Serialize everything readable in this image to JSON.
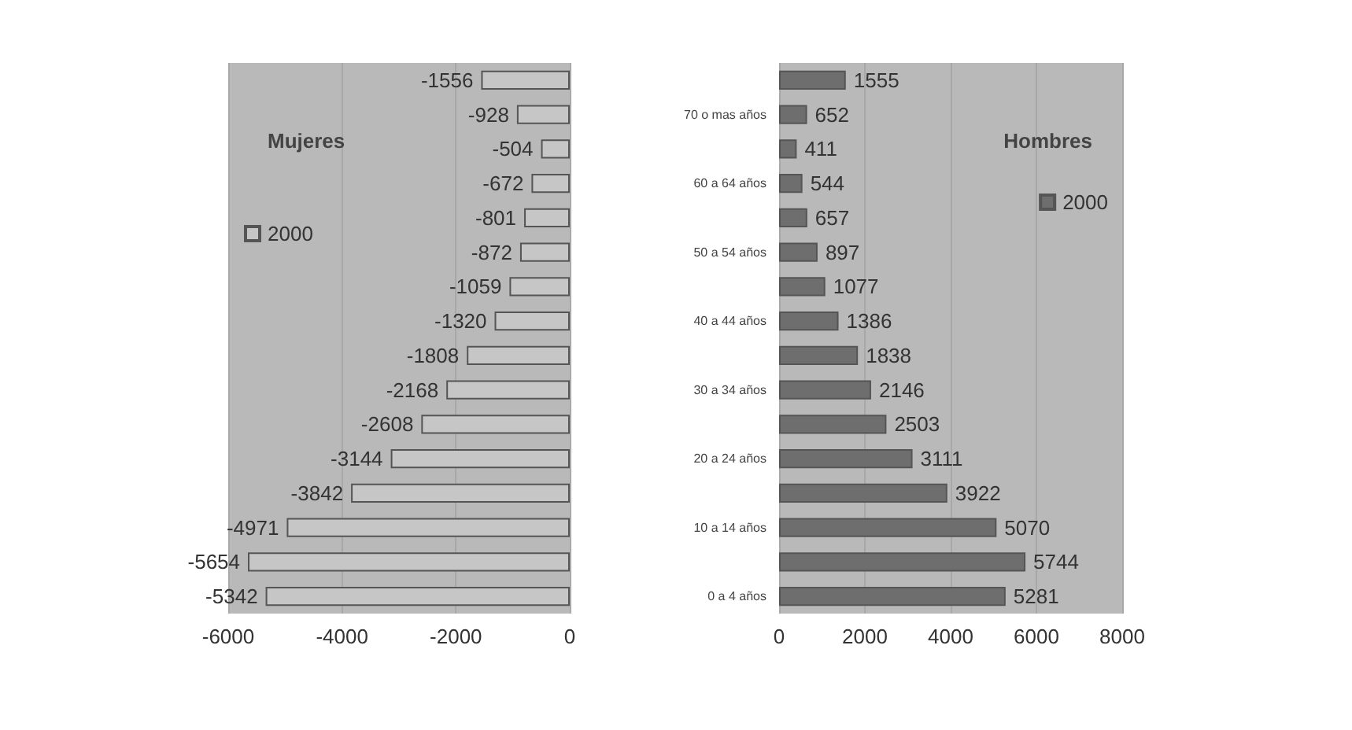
{
  "chart_data": [
    {
      "type": "bar",
      "orientation": "horizontal",
      "title": "Mujeres",
      "categories": [
        null,
        null,
        null,
        null,
        null,
        null,
        null,
        null,
        null,
        null,
        null,
        null,
        null,
        null,
        null,
        null
      ],
      "series": [
        {
          "name": "2000",
          "color": "#c6c6c6",
          "values": [
            -1556,
            -928,
            -504,
            -672,
            -801,
            -872,
            -1059,
            -1320,
            -1808,
            -2168,
            -2608,
            -3144,
            -3842,
            -4971,
            -5654,
            -5342
          ]
        }
      ],
      "xlim": [
        -6000,
        0
      ],
      "xticks": [
        -6000,
        -4000,
        -2000,
        0
      ],
      "grid": "x",
      "legend": "top left",
      "data_labels": true,
      "tick_labels": "x"
    },
    {
      "type": "bar",
      "orientation": "horizontal",
      "title": "Hombres",
      "categories": [
        null,
        "70 o mas años",
        null,
        "60 a 64 años",
        null,
        "50 a 54 años",
        null,
        "40 a 44 años",
        null,
        "30 a 34 años",
        null,
        "20 a 24 años",
        null,
        "10 a 14 años",
        null,
        "0 a 4 años"
      ],
      "series": [
        {
          "name": "2000",
          "color": "#6e6e6e",
          "values": [
            1555,
            652,
            411,
            544,
            657,
            897,
            1077,
            1386,
            1838,
            2146,
            2503,
            3111,
            3922,
            5070,
            5744,
            5281
          ]
        }
      ],
      "xlim": [
        0,
        8000
      ],
      "xticks": [
        0,
        2000,
        4000,
        6000,
        8000
      ],
      "grid": "x",
      "legend": "top right",
      "data_labels": true
    }
  ]
}
